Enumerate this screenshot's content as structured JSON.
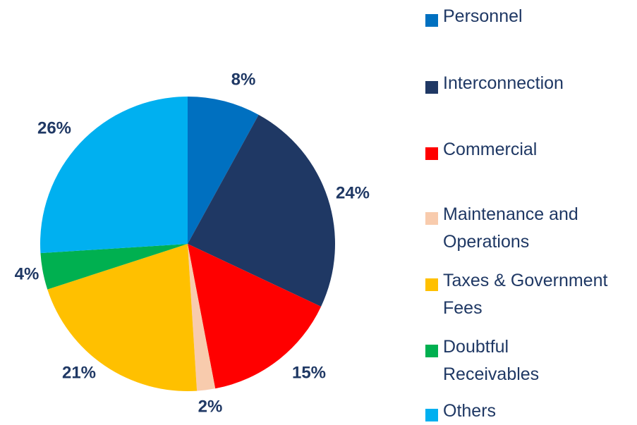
{
  "chart_data": {
    "type": "pie",
    "categories": [
      "Personnel",
      "Interconnection",
      "Commercial",
      "Maintenance and Operations",
      "Taxes & Government Fees",
      "Doubtful Receivables",
      "Others"
    ],
    "values": [
      8,
      24,
      15,
      2,
      21,
      4,
      26
    ],
    "value_labels": [
      "8%",
      "24%",
      "15%",
      "2%",
      "21%",
      "4%",
      "26%"
    ],
    "colors": [
      "#0070c0",
      "#1f3864",
      "#ff0000",
      "#f8cbad",
      "#ffc000",
      "#00b050",
      "#00b0f0"
    ],
    "legend": "right"
  }
}
